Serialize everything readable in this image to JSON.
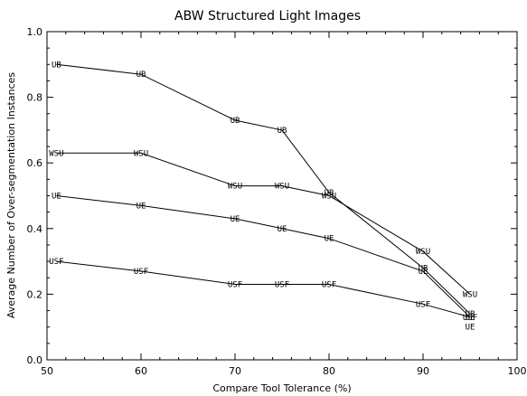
{
  "chart_data": {
    "type": "line",
    "title": "ABW Structured Light Images",
    "xlabel": "Compare Tool Tolerance (%)",
    "ylabel": "Average Number of Over-segmentation Instances",
    "xlim": [
      50,
      100
    ],
    "ylim": [
      0.0,
      1.0
    ],
    "xticks": [
      "50",
      "60",
      "70",
      "80",
      "90",
      "100"
    ],
    "yticks": [
      "0.0",
      "0.2",
      "0.4",
      "0.6",
      "0.8",
      "1.0"
    ],
    "grid": false,
    "legend": "none",
    "series": [
      {
        "name": "UB",
        "x": [
          51,
          60,
          70,
          75,
          80,
          90,
          95
        ],
        "y": [
          0.9,
          0.87,
          0.73,
          0.7,
          0.51,
          0.28,
          0.14
        ]
      },
      {
        "name": "WSU",
        "x": [
          51,
          60,
          70,
          75,
          80,
          90,
          95
        ],
        "y": [
          0.63,
          0.63,
          0.53,
          0.53,
          0.5,
          0.33,
          0.2
        ]
      },
      {
        "name": "UE",
        "x": [
          51,
          60,
          70,
          75,
          80,
          90,
          95
        ],
        "y": [
          0.5,
          0.47,
          0.43,
          0.4,
          0.37,
          0.27,
          0.13
        ]
      },
      {
        "name": "USF",
        "x": [
          51,
          60,
          70,
          75,
          80,
          90,
          95
        ],
        "y": [
          0.3,
          0.27,
          0.23,
          0.23,
          0.23,
          0.17,
          0.13
        ]
      }
    ],
    "extra_markers": [
      {
        "label": "UE",
        "x": 95,
        "y": 0.1
      }
    ]
  }
}
